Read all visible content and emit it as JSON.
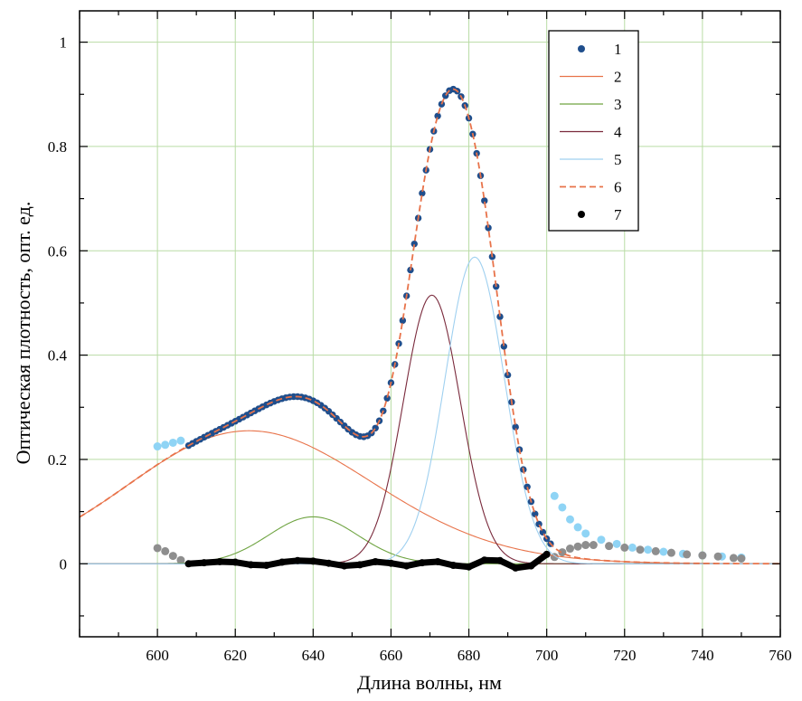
{
  "chart_data": {
    "type": "line",
    "xlabel": "Длина волны, нм",
    "ylabel": "Оптическая плотность, опт. ед.",
    "xlim": [
      580,
      760
    ],
    "ylim": [
      -0.14,
      1.06
    ],
    "x_ticks": [
      600,
      620,
      640,
      660,
      680,
      700,
      720,
      740,
      760
    ],
    "y_ticks": [
      0,
      0.2,
      0.4,
      0.6,
      0.8,
      1
    ],
    "x_tick_labels": [
      "600",
      "620",
      "640",
      "660",
      "680",
      "700",
      "720",
      "740",
      "760"
    ],
    "y_tick_labels": [
      "0",
      "0.2",
      "0.4",
      "0.6",
      "0.8",
      "1"
    ],
    "grid": true,
    "legend_position": "top-right",
    "series": [
      {
        "name": "1",
        "style": "markers",
        "color": "#1f4e8c",
        "x_range": [
          608,
          701
        ],
        "step": 1,
        "composite_of": [
          "2",
          "3",
          "4",
          "5"
        ]
      },
      {
        "name": "2",
        "style": "line",
        "color": "#e8734a",
        "shape": "lognormal",
        "peak_x": 623.5,
        "peak_y": 0.255,
        "sigma": 0.05,
        "x_range": [
          580,
          760
        ]
      },
      {
        "name": "3",
        "style": "line",
        "color": "#6fa442",
        "shape": "gaussian",
        "peak_x": 640,
        "peak_y": 0.09,
        "width": 11.5,
        "x_range": [
          580,
          760
        ]
      },
      {
        "name": "4",
        "style": "line",
        "color": "#7a2a3c",
        "shape": "gaussian",
        "peak_x": 670.5,
        "peak_y": 0.515,
        "width": 7.3,
        "x_range": [
          580,
          760
        ]
      },
      {
        "name": "5",
        "style": "line",
        "color": "#9fd0f0",
        "shape": "gaussian",
        "peak_x": 681.5,
        "peak_y": 0.588,
        "width": 7.6,
        "x_range": [
          580,
          760
        ]
      },
      {
        "name": "6",
        "style": "dashed",
        "color": "#e8734a",
        "composite_of": [
          "2",
          "3",
          "4",
          "5"
        ],
        "x_range": [
          580,
          760
        ]
      },
      {
        "name": "7",
        "style": "markers",
        "color": "#000000",
        "x_range": [
          608,
          701
        ],
        "points": [
          [
            608,
            0
          ],
          [
            612,
            0.002
          ],
          [
            616,
            0.004
          ],
          [
            620,
            0.003
          ],
          [
            624,
            -0.002
          ],
          [
            628,
            -0.003
          ],
          [
            632,
            0.003
          ],
          [
            636,
            0.006
          ],
          [
            640,
            0.005
          ],
          [
            644,
            0.001
          ],
          [
            648,
            -0.004
          ],
          [
            652,
            -0.002
          ],
          [
            656,
            0.004
          ],
          [
            660,
            0.001
          ],
          [
            664,
            -0.004
          ],
          [
            668,
            0.002
          ],
          [
            672,
            0.004
          ],
          [
            676,
            -0.003
          ],
          [
            680,
            -0.006
          ],
          [
            684,
            0.007
          ],
          [
            688,
            0.006
          ],
          [
            692,
            -0.008
          ],
          [
            696,
            -0.004
          ],
          [
            700,
            0.018
          ]
        ]
      }
    ],
    "extra_markers": [
      {
        "color": "#8fd4f5",
        "points": [
          [
            600,
            0.225
          ],
          [
            602,
            0.228
          ],
          [
            604,
            0.232
          ],
          [
            606,
            0.236
          ],
          [
            702,
            0.13
          ],
          [
            704,
            0.108
          ],
          [
            706,
            0.085
          ],
          [
            708,
            0.07
          ],
          [
            710,
            0.058
          ],
          [
            714,
            0.046
          ],
          [
            718,
            0.038
          ],
          [
            722,
            0.031
          ],
          [
            726,
            0.027
          ],
          [
            730,
            0.023
          ],
          [
            735,
            0.019
          ],
          [
            740,
            0.016
          ],
          [
            745,
            0.014
          ],
          [
            750,
            0.012
          ]
        ]
      },
      {
        "color": "#8e8e8e",
        "points": [
          [
            600,
            0.03
          ],
          [
            602,
            0.024
          ],
          [
            604,
            0.015
          ],
          [
            606,
            0.007
          ],
          [
            702,
            0.013
          ],
          [
            704,
            0.022
          ],
          [
            706,
            0.029
          ],
          [
            708,
            0.033
          ],
          [
            710,
            0.036
          ],
          [
            712,
            0.036
          ],
          [
            716,
            0.034
          ],
          [
            720,
            0.031
          ],
          [
            724,
            0.027
          ],
          [
            728,
            0.024
          ],
          [
            732,
            0.021
          ],
          [
            736,
            0.018
          ],
          [
            740,
            0.016
          ],
          [
            744,
            0.014
          ],
          [
            748,
            0.011
          ],
          [
            750,
            0.01
          ]
        ]
      }
    ]
  }
}
